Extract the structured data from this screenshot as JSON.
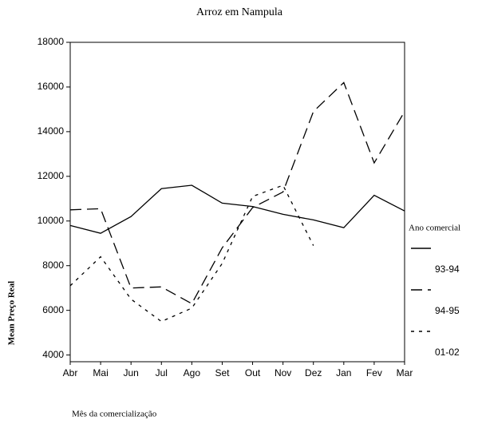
{
  "chart_data": {
    "type": "line",
    "title": "Arroz em Nampula",
    "x_label": "Mês da comercialização",
    "y_label": "Mean Preço Real",
    "legend_title": "Ano comercial",
    "categories": [
      "Abr",
      "Mai",
      "Jun",
      "Jul",
      "Ago",
      "Set",
      "Out",
      "Nov",
      "Dez",
      "Jan",
      "Fev",
      "Mar"
    ],
    "series": [
      {
        "name": "93-94",
        "color": "#000000",
        "line_style": "solid",
        "values": [
          9800,
          9450,
          10200,
          11450,
          11600,
          10800,
          10650,
          10300,
          10050,
          9700,
          11150,
          10450
        ]
      },
      {
        "name": "94-95",
        "color": "#000000",
        "line_style": "long-dash",
        "values": [
          10500,
          10550,
          7000,
          7050,
          6300,
          8800,
          10600,
          11300,
          14900,
          16200,
          12600,
          14900
        ]
      },
      {
        "name": "01-02",
        "color": "#000000",
        "line_style": "short-dash",
        "values": [
          7100,
          8400,
          6500,
          5500,
          6100,
          8100,
          11100,
          11600,
          8900,
          null,
          null,
          null
        ]
      }
    ],
    "ylim": [
      3700,
      18000
    ],
    "yticks": [
      4000,
      6000,
      8000,
      10000,
      12000,
      14000,
      16000,
      18000
    ]
  }
}
